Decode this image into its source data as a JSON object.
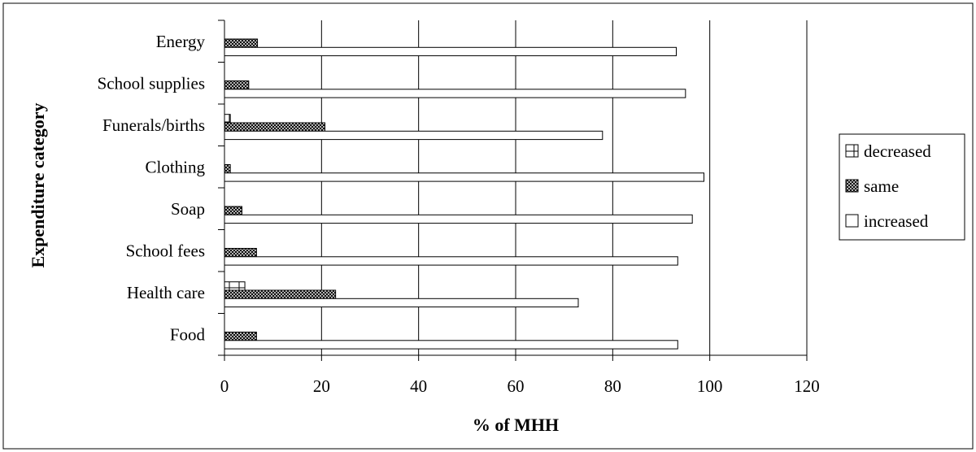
{
  "chart_data": {
    "type": "bar",
    "orientation": "horizontal",
    "title": "",
    "xlabel": "% of  MHH",
    "ylabel": "Expenditure category",
    "xlim": [
      0,
      120
    ],
    "xticks": [
      0,
      20,
      40,
      60,
      80,
      100,
      120
    ],
    "tick_labels": [
      "0",
      "20",
      "40",
      "60",
      "80",
      "100",
      "120"
    ],
    "grid": "vertical",
    "legend_position": "right",
    "categories": [
      "Energy",
      "School supplies",
      "Funerals/births",
      "Clothing",
      "Soap",
      "School fees",
      "Health care",
      "Food"
    ],
    "series": [
      {
        "name": "decreased",
        "pattern": "grid",
        "values": [
          0,
          0,
          1.2,
          0,
          0,
          0,
          4.2,
          0
        ]
      },
      {
        "name": "same",
        "pattern": "crosshatch",
        "values": [
          6.8,
          5,
          20.7,
          1.2,
          3.6,
          6.6,
          22.9,
          6.6
        ]
      },
      {
        "name": "increased",
        "pattern": "none",
        "values": [
          93.1,
          95,
          77.9,
          98.8,
          96.4,
          93.4,
          72.9,
          93.4
        ]
      }
    ],
    "colors": {
      "bar_fill": "#ffffff",
      "bar_stroke": "#000000",
      "grid": "#000000",
      "background": "#ffffff"
    }
  }
}
